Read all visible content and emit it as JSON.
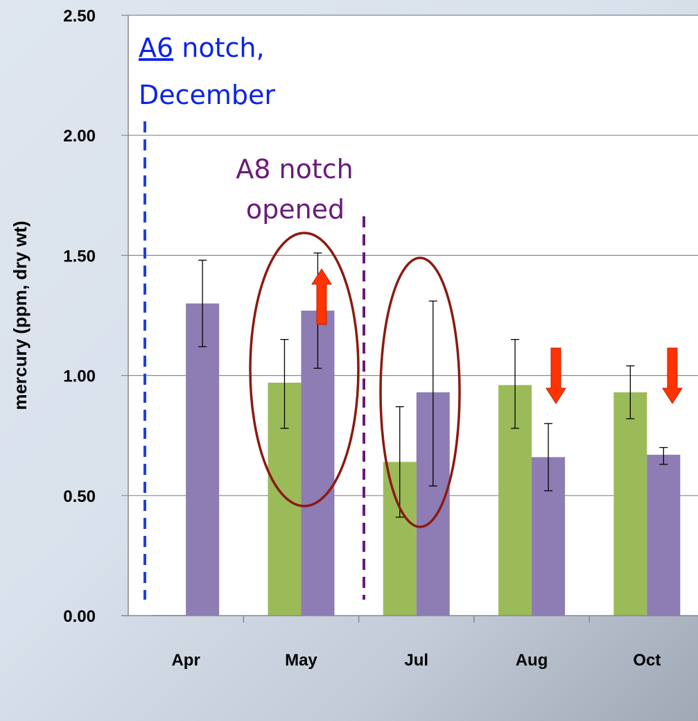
{
  "chart_data": {
    "type": "bar",
    "ylabel": "mercury (ppm, dry wt)",
    "ylim": [
      0,
      2.5
    ],
    "yticks": [
      "0.00",
      "0.50",
      "1.00",
      "1.50",
      "2.00",
      "2.50"
    ],
    "categories": [
      "Apr",
      "May",
      "Jul",
      "Aug",
      "Oct"
    ],
    "grid": true,
    "series": [
      {
        "color": "#9bbb59",
        "values": [
          0.0,
          0.97,
          0.64,
          0.96,
          0.93
        ],
        "err_low": [
          0.0,
          0.78,
          0.41,
          0.78,
          0.82
        ],
        "err_high": [
          0.0,
          1.15,
          0.87,
          1.15,
          1.04
        ]
      },
      {
        "color": "#8e7cb4",
        "values": [
          1.3,
          1.27,
          0.93,
          0.66,
          0.67
        ],
        "err_low": [
          1.12,
          1.03,
          0.54,
          0.52,
          0.63
        ],
        "err_high": [
          1.48,
          1.51,
          1.31,
          0.8,
          0.7
        ]
      }
    ],
    "annotations": {
      "a6_link": "A6",
      "a6_rest": " notch,",
      "a6_line2": "December",
      "a8_line1": "A8 notch",
      "a8_line2": "opened",
      "arrows": [
        {
          "category": "May",
          "direction": "up"
        },
        {
          "category": "Aug",
          "direction": "down"
        },
        {
          "category": "Oct",
          "direction": "down"
        }
      ],
      "circled_categories": [
        "May",
        "Jul"
      ]
    },
    "colors": {
      "arrow": "#ff3300",
      "ellipse": "#8b1a10",
      "a6_line": "#1f3fe0",
      "a8_line": "#6a1a7a"
    }
  }
}
